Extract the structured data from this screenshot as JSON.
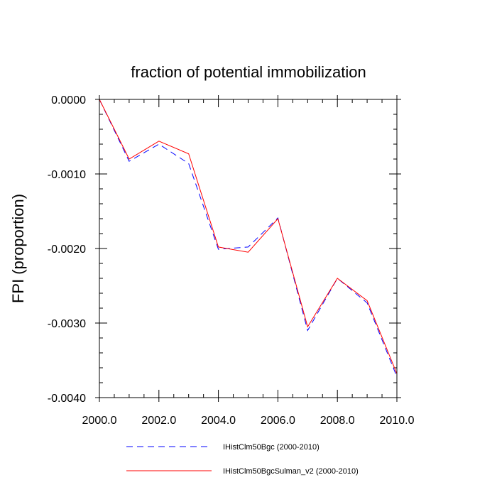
{
  "chart_data": {
    "type": "line",
    "title": "fraction of potential immobilization",
    "xlabel": "",
    "ylabel": "FPI  (proportion)",
    "xlim": [
      2000,
      2010
    ],
    "ylim": [
      -0.004,
      0.0
    ],
    "x_ticks": [
      "2000.0",
      "2002.0",
      "2004.0",
      "2006.0",
      "2008.0",
      "2010.0"
    ],
    "x_tick_values": [
      2000,
      2002,
      2004,
      2006,
      2008,
      2010
    ],
    "y_ticks": [
      "0.0000",
      "-0.0010",
      "-0.0020",
      "-0.0030",
      "-0.0040"
    ],
    "y_tick_values": [
      0.0,
      -0.001,
      -0.002,
      -0.003,
      -0.004
    ],
    "x": [
      2000,
      2001,
      2002,
      2003,
      2004,
      2005,
      2006,
      2007,
      2008,
      2009,
      2010
    ],
    "series": [
      {
        "name": "IHistClm50Bgc (2000-2010)",
        "color": "#0000ff",
        "style": "dashed",
        "values": [
          0.0,
          -0.00083,
          -0.0006,
          -0.00086,
          -0.00201,
          -0.00198,
          -0.00159,
          -0.0031,
          -0.0024,
          -0.00273,
          -0.00372
        ]
      },
      {
        "name": "IHistClm50BgcSulman_v2 (2000-2010)",
        "color": "#ff0000",
        "style": "solid",
        "values": [
          0.0,
          -0.0008,
          -0.00056,
          -0.00073,
          -0.00198,
          -0.00205,
          -0.0016,
          -0.00305,
          -0.0024,
          -0.0027,
          -0.00368
        ]
      }
    ],
    "grid": false,
    "legend_position": "bottom"
  }
}
